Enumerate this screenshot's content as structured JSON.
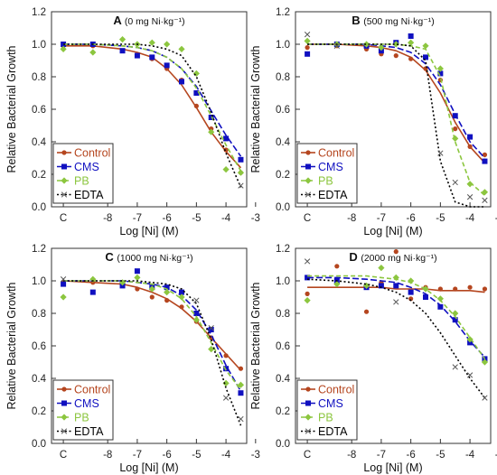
{
  "colors": {
    "Control": "#b5461f",
    "CMS": "#1010c0",
    "PB": "#8cc63f",
    "EDTA": "#000000"
  },
  "chart_data": [
    {
      "type": "line+scatter",
      "letter": "A",
      "subtitle": "(0 mg Ni·kg⁻¹)",
      "xlabel": "Log [Ni] (M)",
      "ylabel": "Relative Bacterial Growth",
      "xticks": [
        "C",
        "-8",
        "-7",
        "-6",
        "-5",
        "-4",
        "-3"
      ],
      "yticks": [
        "0.0",
        "0.2",
        "0.4",
        "0.6",
        "0.8",
        "1.0",
        "1.2"
      ],
      "xlim": [
        -9.9,
        -3.3
      ],
      "ylim": [
        0,
        1.2
      ],
      "legend_position": "bottom-left",
      "series": [
        {
          "name": "Control",
          "marker": "circle",
          "x": [
            -9.5,
            -8.5,
            -7.5,
            -7.0,
            -6.5,
            -6.0,
            -5.5,
            -5.0,
            -4.5,
            -4.0,
            -3.5
          ],
          "y": [
            0.99,
            0.99,
            0.96,
            0.93,
            0.91,
            0.85,
            0.78,
            0.62,
            0.48,
            0.35,
            0.21
          ],
          "curve": [
            0.99,
            0.99,
            0.97,
            0.95,
            0.92,
            0.85,
            0.75,
            0.61,
            0.46,
            0.34,
            0.24
          ]
        },
        {
          "name": "CMS",
          "marker": "square",
          "x": [
            -9.5,
            -8.5,
            -7.5,
            -7.0,
            -6.5,
            -6.0,
            -5.5,
            -5.0,
            -4.5,
            -4.0,
            -3.5
          ],
          "y": [
            1.0,
            1.0,
            0.96,
            0.93,
            0.92,
            0.87,
            0.77,
            0.7,
            0.55,
            0.42,
            0.29
          ],
          "curve": [
            1.0,
            1.0,
            0.99,
            0.98,
            0.96,
            0.92,
            0.85,
            0.74,
            0.59,
            0.44,
            0.31
          ]
        },
        {
          "name": "PB",
          "marker": "diamond",
          "x": [
            -9.5,
            -8.5,
            -7.5,
            -7.0,
            -6.5,
            -6.0,
            -5.5,
            -5.0,
            -4.5,
            -4.0,
            -3.5
          ],
          "y": [
            0.97,
            0.95,
            1.03,
            1.0,
            1.01,
            1.0,
            0.97,
            0.82,
            0.46,
            0.23,
            0.21
          ],
          "curve": [
            1.0,
            1.0,
            0.99,
            0.98,
            0.96,
            0.92,
            0.85,
            0.73,
            0.56,
            0.38,
            0.22
          ]
        },
        {
          "name": "EDTA",
          "marker": "x",
          "x": [
            -3.5
          ],
          "y": [
            0.13
          ],
          "curve": [
            1.0,
            1.0,
            1.0,
            1.0,
            0.99,
            0.97,
            0.93,
            0.8,
            0.58,
            0.33,
            0.12
          ]
        }
      ]
    },
    {
      "type": "line+scatter",
      "letter": "B",
      "subtitle": "(500 mg Ni·kg⁻¹)",
      "xlabel": "Log [Ni] (M)",
      "ylabel": "Relative Bacterial Growth",
      "xticks": [
        "C",
        "-8",
        "-7",
        "-6",
        "-5",
        "-4",
        "-3"
      ],
      "yticks": [
        "0.0",
        "0.2",
        "0.4",
        "0.6",
        "0.8",
        "1.0",
        "1.2"
      ],
      "xlim": [
        -9.9,
        -3.3
      ],
      "ylim": [
        0,
        1.2
      ],
      "legend_position": "bottom-left",
      "series": [
        {
          "name": "Control",
          "marker": "circle",
          "x": [
            -9.5,
            -8.5,
            -7.5,
            -7.0,
            -6.5,
            -6.0,
            -5.5,
            -5.0,
            -4.5,
            -4.0,
            -3.5
          ],
          "y": [
            0.98,
            0.99,
            0.97,
            0.94,
            0.93,
            0.91,
            0.85,
            0.78,
            0.48,
            0.37,
            0.32
          ],
          "curve": [
            1.0,
            1.0,
            0.99,
            0.98,
            0.96,
            0.92,
            0.84,
            0.7,
            0.52,
            0.37,
            0.27
          ]
        },
        {
          "name": "CMS",
          "marker": "square",
          "x": [
            -9.5,
            -8.5,
            -7.5,
            -7.0,
            -6.5,
            -6.0,
            -5.5,
            -5.0,
            -4.5,
            -4.0,
            -3.5
          ],
          "y": [
            0.94,
            1.0,
            0.99,
            0.96,
            1.01,
            1.05,
            0.92,
            0.82,
            0.56,
            0.43,
            0.28
          ],
          "curve": [
            1.0,
            1.0,
            1.0,
            0.99,
            0.98,
            0.95,
            0.88,
            0.75,
            0.57,
            0.4,
            0.3
          ]
        },
        {
          "name": "PB",
          "marker": "diamond",
          "x": [
            -9.5,
            -8.5,
            -7.5,
            -7.0,
            -6.5,
            -6.0,
            -5.5,
            -5.0,
            -4.5,
            -4.0,
            -3.5
          ],
          "y": [
            1.02,
            1.0,
            1.0,
            0.98,
            1.0,
            1.01,
            0.99,
            0.85,
            0.42,
            0.14,
            0.09
          ],
          "curve": [
            1.0,
            1.0,
            1.0,
            1.0,
            1.0,
            0.99,
            0.97,
            0.8,
            0.4,
            0.15,
            0.07
          ]
        },
        {
          "name": "EDTA",
          "marker": "x",
          "x": [
            -9.5,
            -8.5,
            -5.0,
            -4.5,
            -4.0,
            -3.5
          ],
          "y": [
            1.06,
            0.99,
            0.33,
            0.15,
            0.06,
            0.04
          ],
          "curve": [
            1.0,
            1.0,
            1.0,
            1.0,
            1.0,
            0.99,
            0.9,
            0.28,
            0.03,
            0.0,
            0.0
          ]
        }
      ]
    },
    {
      "type": "line+scatter",
      "letter": "C",
      "subtitle": "(1000 mg Ni·kg⁻¹)",
      "xlabel": "Log [Ni] (M)",
      "ylabel": "Relative Bacterial Growth",
      "xticks": [
        "C",
        "-8",
        "-7",
        "-6",
        "-5",
        "-4",
        "-3"
      ],
      "yticks": [
        "0.0",
        "0.2",
        "0.4",
        "0.6",
        "0.8",
        "1.0",
        "1.2"
      ],
      "xlim": [
        -9.9,
        -3.3
      ],
      "ylim": [
        0,
        1.2
      ],
      "legend_position": "bottom-left",
      "series": [
        {
          "name": "Control",
          "marker": "circle",
          "x": [
            -9.5,
            -8.5,
            -7.5,
            -7.0,
            -6.5,
            -6.0,
            -5.5,
            -5.0,
            -4.5,
            -4.0,
            -3.5
          ],
          "y": [
            0.99,
            0.99,
            0.98,
            0.95,
            0.9,
            0.88,
            0.84,
            0.75,
            0.65,
            0.54,
            0.46
          ],
          "curve": [
            1.0,
            0.99,
            0.98,
            0.96,
            0.93,
            0.89,
            0.83,
            0.75,
            0.65,
            0.55,
            0.45
          ]
        },
        {
          "name": "CMS",
          "marker": "square",
          "x": [
            -9.5,
            -8.5,
            -7.5,
            -7.0,
            -6.5,
            -6.0,
            -5.5,
            -5.0,
            -4.5,
            -4.0,
            -3.5
          ],
          "y": [
            0.98,
            0.93,
            0.97,
            1.06,
            0.96,
            0.96,
            0.93,
            0.8,
            0.7,
            0.46,
            0.31
          ],
          "curve": [
            1.0,
            1.0,
            1.0,
            0.99,
            0.98,
            0.96,
            0.91,
            0.82,
            0.67,
            0.48,
            0.32
          ]
        },
        {
          "name": "PB",
          "marker": "diamond",
          "x": [
            -9.5,
            -8.5,
            -7.5,
            -7.0,
            -6.5,
            -6.0,
            -5.5,
            -5.0,
            -4.5,
            -4.0,
            -3.5
          ],
          "y": [
            0.9,
            1.01,
            0.99,
            1.02,
            0.95,
            0.93,
            0.9,
            0.76,
            0.58,
            0.37,
            0.36
          ],
          "curve": [
            1.0,
            1.0,
            1.0,
            0.99,
            0.98,
            0.95,
            0.89,
            0.78,
            0.62,
            0.45,
            0.33
          ]
        },
        {
          "name": "EDTA",
          "marker": "x",
          "x": [
            -9.5,
            -5.0,
            -4.5,
            -4.0,
            -3.5
          ],
          "y": [
            1.01,
            0.88,
            0.71,
            0.28,
            0.15
          ],
          "curve": [
            1.0,
            1.0,
            1.0,
            1.0,
            0.99,
            0.98,
            0.95,
            0.86,
            0.64,
            0.34,
            0.11
          ]
        }
      ]
    },
    {
      "type": "line+scatter",
      "letter": "D",
      "subtitle": "(2000 mg Ni·kg⁻¹)",
      "xlabel": "Log [Ni] (M)",
      "ylabel": "Relative Bacterial Growth",
      "xticks": [
        "C",
        "-8",
        "-7",
        "-6",
        "-5",
        "-4",
        "-3"
      ],
      "yticks": [
        "0.0",
        "0.2",
        "0.4",
        "0.6",
        "0.8",
        "1.0",
        "1.2"
      ],
      "xlim": [
        -9.9,
        -3.3
      ],
      "ylim": [
        0,
        1.2
      ],
      "legend_position": "bottom-left",
      "series": [
        {
          "name": "Control",
          "marker": "circle",
          "x": [
            -9.5,
            -8.5,
            -7.5,
            -7.0,
            -6.5,
            -6.0,
            -5.5,
            -5.0,
            -4.5,
            -4.0,
            -3.5
          ],
          "y": [
            0.92,
            1.09,
            0.81,
            0.99,
            1.18,
            0.89,
            0.96,
            0.95,
            0.95,
            0.96,
            0.95
          ],
          "curve": [
            0.96,
            0.96,
            0.96,
            0.96,
            0.95,
            0.95,
            0.95,
            0.94,
            0.94,
            0.94,
            0.93
          ]
        },
        {
          "name": "CMS",
          "marker": "square",
          "x": [
            -9.5,
            -8.5,
            -7.5,
            -7.0,
            -6.5,
            -6.0,
            -5.5,
            -5.0,
            -4.5,
            -4.0,
            -3.5
          ],
          "y": [
            1.02,
            1.0,
            0.96,
            0.97,
            0.97,
            0.93,
            0.9,
            0.84,
            0.76,
            0.62,
            0.52
          ],
          "curve": [
            1.02,
            1.02,
            1.01,
            1.0,
            0.99,
            0.96,
            0.92,
            0.85,
            0.75,
            0.63,
            0.53
          ]
        },
        {
          "name": "PB",
          "marker": "diamond",
          "x": [
            -9.5,
            -8.5,
            -7.5,
            -7.0,
            -6.5,
            -6.0,
            -5.5,
            -5.0,
            -4.5,
            -4.0,
            -3.5
          ],
          "y": [
            0.88,
            0.98,
            0.97,
            1.08,
            1.02,
            1.0,
            0.95,
            0.89,
            0.8,
            0.64,
            0.5
          ],
          "curve": [
            1.03,
            1.03,
            1.03,
            1.02,
            1.01,
            0.99,
            0.95,
            0.88,
            0.78,
            0.65,
            0.52
          ]
        },
        {
          "name": "EDTA",
          "marker": "x",
          "x": [
            -9.5,
            -6.5,
            -4.5,
            -4.0,
            -3.5
          ],
          "y": [
            1.12,
            0.87,
            0.47,
            0.42,
            0.28
          ],
          "curve": [
            1.01,
            1.0,
            0.98,
            0.96,
            0.93,
            0.88,
            0.8,
            0.68,
            0.54,
            0.4,
            0.28
          ]
        }
      ]
    }
  ]
}
